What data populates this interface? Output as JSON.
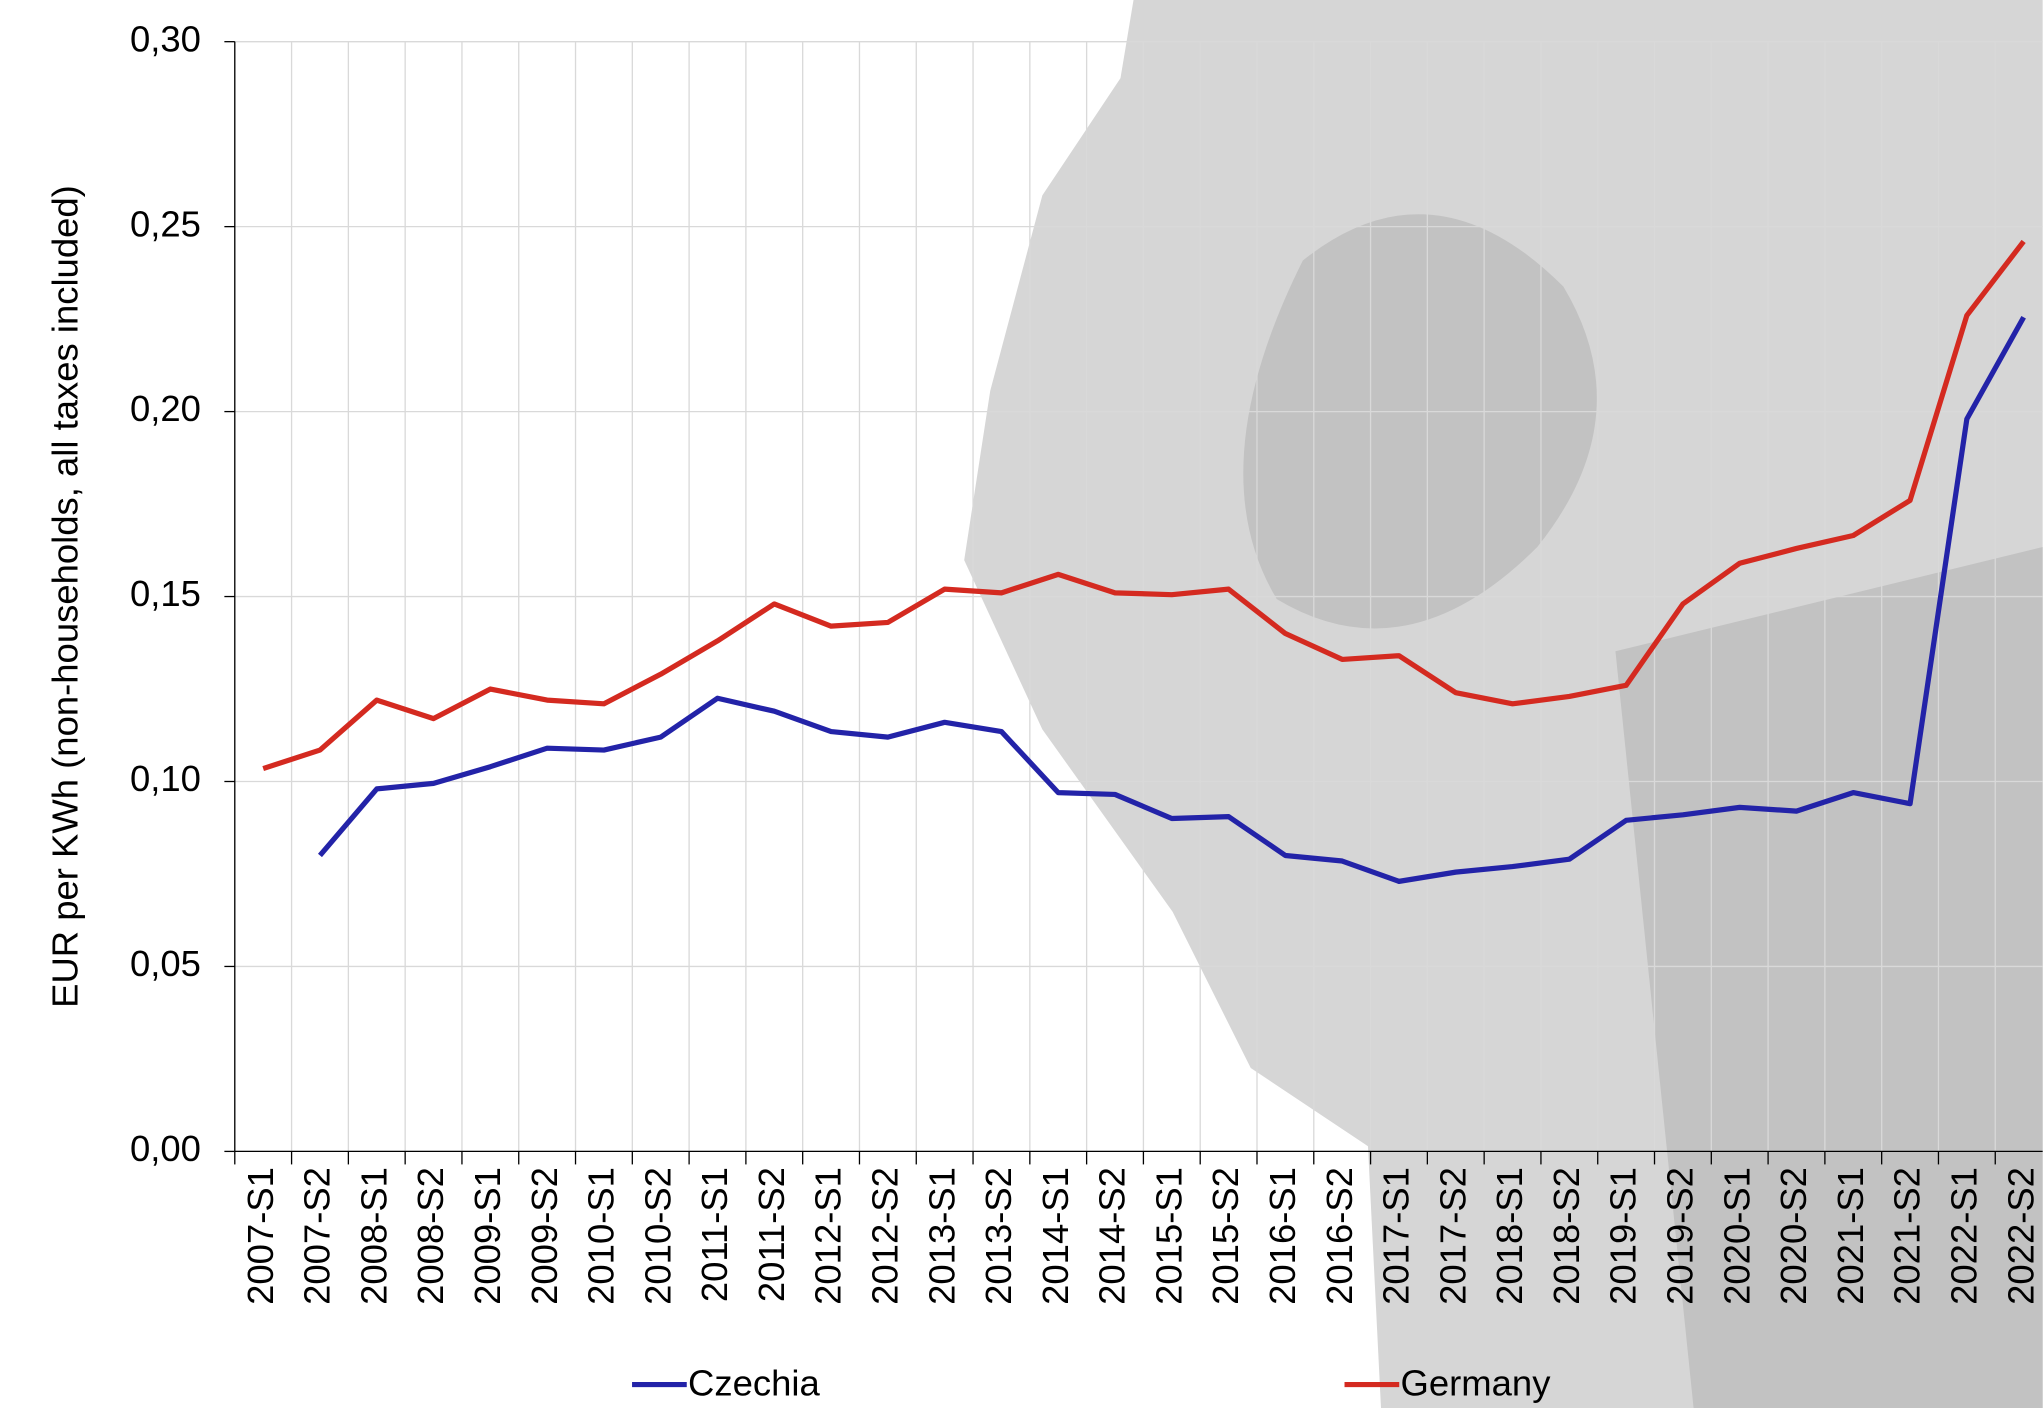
{
  "chart_data": {
    "type": "line",
    "y_label": "EUR per KWh (non-households, all taxes included)",
    "categories": [
      "2007-S1",
      "2007-S2",
      "2008-S1",
      "2008-S2",
      "2009-S1",
      "2009-S2",
      "2010-S1",
      "2010-S2",
      "2011-S1",
      "2011-S2",
      "2012-S1",
      "2012-S2",
      "2013-S1",
      "2013-S2",
      "2014-S1",
      "2014-S2",
      "2015-S1",
      "2015-S2",
      "2016-S1",
      "2016-S2",
      "2017-S1",
      "2017-S2",
      "2018-S1",
      "2018-S2",
      "2019-S1",
      "2019-S2",
      "2020-S1",
      "2020-S2",
      "2021-S1",
      "2021-S2",
      "2022-S1",
      "2022-S2"
    ],
    "series": [
      {
        "name": "Czechia",
        "color": "#2323a8",
        "values": [
          null,
          0.08,
          0.098,
          0.0995,
          0.104,
          0.109,
          0.1085,
          0.112,
          0.1225,
          0.119,
          0.1135,
          0.112,
          0.116,
          0.1135,
          0.097,
          0.0965,
          0.09,
          0.0905,
          0.08,
          0.0785,
          0.073,
          0.0755,
          0.077,
          0.079,
          0.0895,
          0.091,
          0.093,
          0.092,
          0.097,
          0.094,
          0.198,
          0.2255
        ]
      },
      {
        "name": "Germany",
        "color": "#d42a20",
        "values": [
          0.1035,
          0.1085,
          0.122,
          0.117,
          0.125,
          0.122,
          0.121,
          0.129,
          0.138,
          0.148,
          0.142,
          0.143,
          0.152,
          0.151,
          0.156,
          0.151,
          0.1505,
          0.152,
          0.14,
          0.133,
          0.134,
          0.124,
          0.121,
          0.123,
          0.126,
          0.148,
          0.159,
          0.163,
          0.1665,
          0.176,
          0.226,
          0.246
        ]
      }
    ],
    "ylim": [
      0,
      0.3
    ],
    "yticks": [
      {
        "value": 0,
        "label": "0,00"
      },
      {
        "value": 0.05,
        "label": "0,05"
      },
      {
        "value": 0.1,
        "label": "0,10"
      },
      {
        "value": 0.15,
        "label": "0,15"
      },
      {
        "value": 0.2,
        "label": "0,20"
      },
      {
        "value": 0.25,
        "label": "0,25"
      },
      {
        "value": 0.3,
        "label": "0,30"
      }
    ],
    "grid": true
  }
}
